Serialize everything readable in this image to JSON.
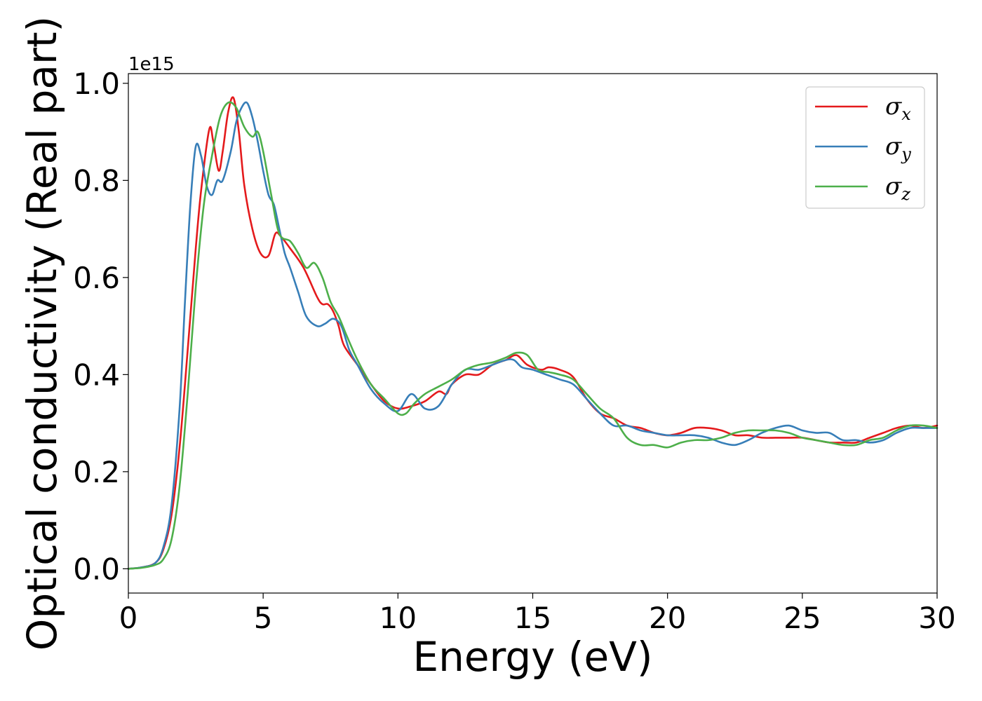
{
  "chart_data": {
    "type": "line",
    "title": "",
    "xlabel": "Energy (eV)",
    "ylabel": "Optical conductivity (Real part)",
    "y_offset_label": "1e15",
    "xlim": [
      0,
      30
    ],
    "ylim": [
      -0.05,
      1.02
    ],
    "y_scale_factor": 1000000000000000.0,
    "xticks": [
      0,
      5,
      10,
      15,
      20,
      25,
      30
    ],
    "xtick_labels": [
      "0",
      "5",
      "10",
      "15",
      "20",
      "25",
      "30"
    ],
    "yticks": [
      0.0,
      0.2,
      0.4,
      0.6,
      0.8,
      1.0
    ],
    "ytick_labels": [
      "0.0",
      "0.2",
      "0.4",
      "0.6",
      "0.8",
      "1.0"
    ],
    "grid": false,
    "legend_position": "top-right",
    "series": [
      {
        "name": "σx",
        "symbol": "σ",
        "subscript": "x",
        "color": "#e41a1c",
        "x": [
          0,
          0.5,
          1.0,
          1.3,
          1.6,
          1.9,
          2.2,
          2.5,
          2.7,
          3.0,
          3.15,
          3.35,
          3.5,
          3.7,
          3.9,
          4.1,
          4.3,
          4.6,
          4.9,
          5.2,
          5.45,
          5.65,
          6.0,
          6.5,
          7.0,
          7.2,
          7.4,
          7.6,
          7.8,
          8.0,
          8.5,
          9.0,
          9.5,
          10.0,
          10.5,
          11.0,
          11.5,
          11.8,
          12.0,
          12.5,
          13.0,
          13.5,
          14.0,
          14.4,
          14.8,
          15.3,
          15.6,
          16.0,
          16.5,
          17.0,
          17.5,
          18.0,
          18.5,
          19.0,
          19.5,
          20.0,
          20.5,
          21.0,
          21.5,
          22.0,
          22.5,
          23.0,
          23.5,
          24.0,
          24.5,
          25.0,
          25.5,
          26.0,
          26.5,
          27.0,
          27.5,
          28.0,
          28.5,
          29.0,
          29.5,
          30.0
        ],
        "y": [
          0.0,
          0.003,
          0.012,
          0.04,
          0.11,
          0.25,
          0.45,
          0.66,
          0.78,
          0.905,
          0.88,
          0.82,
          0.86,
          0.94,
          0.97,
          0.9,
          0.79,
          0.7,
          0.65,
          0.645,
          0.69,
          0.685,
          0.66,
          0.62,
          0.56,
          0.545,
          0.545,
          0.53,
          0.5,
          0.46,
          0.42,
          0.38,
          0.345,
          0.33,
          0.335,
          0.345,
          0.365,
          0.36,
          0.38,
          0.4,
          0.4,
          0.42,
          0.43,
          0.44,
          0.42,
          0.41,
          0.415,
          0.41,
          0.395,
          0.35,
          0.32,
          0.31,
          0.295,
          0.29,
          0.28,
          0.275,
          0.28,
          0.29,
          0.29,
          0.285,
          0.275,
          0.275,
          0.27,
          0.27,
          0.27,
          0.27,
          0.265,
          0.26,
          0.26,
          0.26,
          0.27,
          0.28,
          0.29,
          0.295,
          0.29,
          0.295
        ]
      },
      {
        "name": "σy",
        "symbol": "σ",
        "subscript": "y",
        "color": "#377eb8",
        "x": [
          0,
          0.5,
          1.0,
          1.3,
          1.6,
          1.9,
          2.1,
          2.3,
          2.5,
          2.7,
          2.9,
          3.1,
          3.3,
          3.5,
          3.8,
          4.0,
          4.2,
          4.4,
          4.6,
          4.8,
          5.0,
          5.2,
          5.4,
          5.6,
          5.8,
          6.0,
          6.3,
          6.6,
          7.0,
          7.3,
          7.6,
          7.9,
          8.2,
          8.5,
          9.0,
          9.5,
          10.0,
          10.5,
          11.0,
          11.5,
          12.0,
          12.5,
          13.0,
          13.5,
          14.0,
          14.3,
          14.6,
          15.0,
          15.5,
          16.0,
          16.5,
          17.0,
          17.5,
          18.0,
          18.5,
          19.0,
          19.5,
          20.0,
          20.5,
          21.0,
          21.5,
          22.0,
          22.5,
          23.0,
          23.5,
          24.0,
          24.5,
          25.0,
          25.5,
          26.0,
          26.5,
          27.0,
          27.5,
          28.0,
          28.5,
          29.0,
          29.5,
          30.0
        ],
        "y": [
          0.0,
          0.003,
          0.012,
          0.045,
          0.13,
          0.33,
          0.55,
          0.75,
          0.87,
          0.85,
          0.79,
          0.77,
          0.8,
          0.8,
          0.86,
          0.92,
          0.95,
          0.96,
          0.93,
          0.88,
          0.82,
          0.77,
          0.75,
          0.7,
          0.65,
          0.62,
          0.57,
          0.52,
          0.5,
          0.505,
          0.515,
          0.5,
          0.45,
          0.42,
          0.37,
          0.34,
          0.325,
          0.36,
          0.33,
          0.335,
          0.38,
          0.41,
          0.41,
          0.42,
          0.43,
          0.43,
          0.415,
          0.41,
          0.4,
          0.39,
          0.38,
          0.35,
          0.32,
          0.295,
          0.295,
          0.285,
          0.28,
          0.275,
          0.275,
          0.275,
          0.27,
          0.26,
          0.255,
          0.265,
          0.28,
          0.29,
          0.295,
          0.285,
          0.28,
          0.28,
          0.265,
          0.265,
          0.26,
          0.265,
          0.28,
          0.29,
          0.29,
          0.29
        ]
      },
      {
        "name": "σz",
        "symbol": "σ",
        "subscript": "z",
        "color": "#4daf4a",
        "x": [
          0,
          0.5,
          1.0,
          1.3,
          1.6,
          1.9,
          2.2,
          2.5,
          2.8,
          3.1,
          3.4,
          3.7,
          4.0,
          4.3,
          4.6,
          4.8,
          5.0,
          5.3,
          5.6,
          6.0,
          6.3,
          6.6,
          6.9,
          7.2,
          7.5,
          7.8,
          8.1,
          8.5,
          9.0,
          9.5,
          10.0,
          10.3,
          10.6,
          11.0,
          11.5,
          12.0,
          12.5,
          13.0,
          13.5,
          14.0,
          14.4,
          14.8,
          15.2,
          15.6,
          16.0,
          16.5,
          17.0,
          17.5,
          18.0,
          18.5,
          19.0,
          19.5,
          20.0,
          20.5,
          21.0,
          21.5,
          22.0,
          22.5,
          23.0,
          23.5,
          24.0,
          24.5,
          25.0,
          25.5,
          26.0,
          26.5,
          27.0,
          27.5,
          28.0,
          28.5,
          29.0,
          29.5,
          30.0
        ],
        "y": [
          0.0,
          0.002,
          0.008,
          0.02,
          0.06,
          0.17,
          0.36,
          0.58,
          0.75,
          0.85,
          0.93,
          0.96,
          0.95,
          0.91,
          0.89,
          0.9,
          0.86,
          0.77,
          0.69,
          0.675,
          0.65,
          0.62,
          0.63,
          0.6,
          0.55,
          0.52,
          0.48,
          0.43,
          0.38,
          0.35,
          0.32,
          0.32,
          0.34,
          0.36,
          0.375,
          0.39,
          0.41,
          0.42,
          0.425,
          0.435,
          0.445,
          0.44,
          0.41,
          0.405,
          0.4,
          0.39,
          0.36,
          0.33,
          0.31,
          0.27,
          0.255,
          0.255,
          0.25,
          0.26,
          0.265,
          0.265,
          0.27,
          0.28,
          0.285,
          0.285,
          0.285,
          0.28,
          0.27,
          0.265,
          0.26,
          0.255,
          0.255,
          0.265,
          0.27,
          0.285,
          0.295,
          0.295,
          0.29
        ]
      }
    ]
  }
}
